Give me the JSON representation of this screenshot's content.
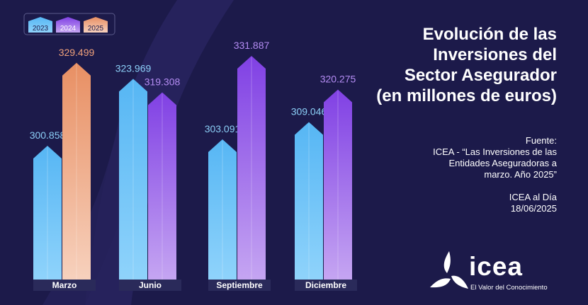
{
  "title_lines": [
    "Evolución de las",
    "Inversiones del",
    "Sector Asegurador",
    "(en millones de euros)"
  ],
  "source": {
    "lines_a": [
      "Fuente:",
      "ICEA - “Las Inversiones de las",
      "Entidades Aseguradoras a",
      "marzo. Año 2025”"
    ],
    "lines_b": [
      "ICEA al Día",
      "18/06/2025"
    ]
  },
  "brand": {
    "name": "icea",
    "tagline": "El Valor del Conocimiento",
    "logo_icon": "icea-triskelion-icon"
  },
  "colors": {
    "background": "#1c1a4a",
    "series_2023": "#4fb0f2",
    "series_2024": "#8a4ee6",
    "series_2025": "#e8906a",
    "category_bar": "#2a2a5a"
  },
  "chart_data": {
    "type": "bar",
    "categories": [
      "Marzo",
      "Junio",
      "Septiembre",
      "Diciembre"
    ],
    "legend_labels": [
      "2023",
      "2024",
      "2025"
    ],
    "legend_position": "top-left",
    "series": [
      {
        "name": "2023",
        "values": [
          300858,
          323969,
          303091,
          309046
        ],
        "labels": [
          "300.858",
          "323.969",
          "303.091",
          "309.046"
        ]
      },
      {
        "name": "2024",
        "values": [
          null,
          319308,
          331887,
          320275
        ],
        "labels": [
          "",
          "319.308",
          "331.887",
          "320.275"
        ]
      },
      {
        "name": "2025",
        "values": [
          329499,
          null,
          null,
          null
        ],
        "labels": [
          "329.499",
          "",
          "",
          ""
        ]
      }
    ],
    "title": "",
    "xlabel": "",
    "ylabel": "",
    "grid": false,
    "axes_visible": false
  }
}
